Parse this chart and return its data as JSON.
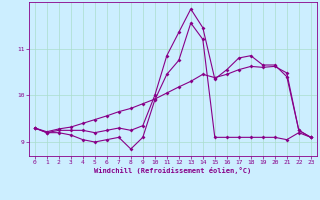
{
  "xlabel": "Windchill (Refroidissement éolien,°C)",
  "x": [
    0,
    1,
    2,
    3,
    4,
    5,
    6,
    7,
    8,
    9,
    10,
    11,
    12,
    13,
    14,
    15,
    16,
    17,
    18,
    19,
    20,
    21,
    22,
    23
  ],
  "line1": [
    9.3,
    9.2,
    9.2,
    9.15,
    9.05,
    9.0,
    9.05,
    9.1,
    8.85,
    9.1,
    9.9,
    10.45,
    10.75,
    11.55,
    11.2,
    9.1,
    9.1,
    9.1,
    9.1,
    9.1,
    9.1,
    9.05,
    9.2,
    9.1
  ],
  "line2": [
    9.3,
    9.2,
    9.25,
    9.25,
    9.25,
    9.2,
    9.25,
    9.3,
    9.25,
    9.35,
    10.0,
    10.85,
    11.35,
    11.85,
    11.45,
    10.35,
    10.55,
    10.8,
    10.85,
    10.65,
    10.65,
    10.4,
    9.25,
    9.1
  ],
  "line3": [
    9.3,
    9.22,
    9.28,
    9.32,
    9.4,
    9.48,
    9.56,
    9.65,
    9.72,
    9.82,
    9.92,
    10.05,
    10.18,
    10.3,
    10.45,
    10.38,
    10.45,
    10.55,
    10.62,
    10.6,
    10.62,
    10.48,
    9.25,
    9.1
  ],
  "line_color": "#880088",
  "bg_color": "#cceeff",
  "grid_color": "#aaddcc",
  "ylim": [
    8.7,
    12.0
  ],
  "xlim": [
    -0.5,
    23.5
  ],
  "yticks": [
    9,
    10,
    11
  ],
  "xticks": [
    0,
    1,
    2,
    3,
    4,
    5,
    6,
    7,
    8,
    9,
    10,
    11,
    12,
    13,
    14,
    15,
    16,
    17,
    18,
    19,
    20,
    21,
    22,
    23
  ]
}
